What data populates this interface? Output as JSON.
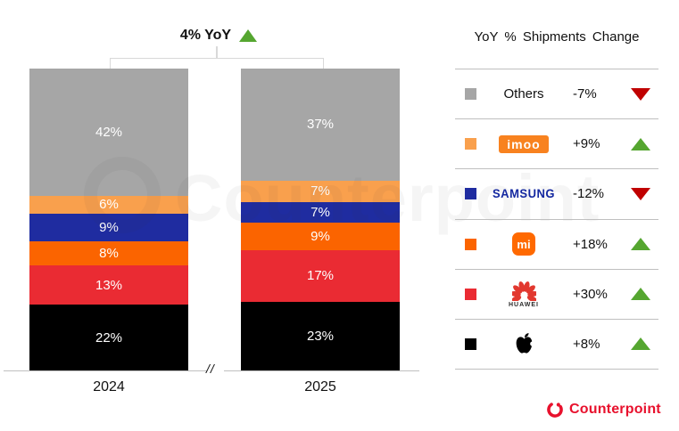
{
  "chart_data": {
    "type": "bar",
    "stacking": "percent",
    "title": "4% YoY",
    "title_direction": "up",
    "categories": [
      "2024",
      "2025"
    ],
    "series": [
      {
        "name": "Others",
        "color": "#A6A6A6",
        "values": [
          42,
          37
        ]
      },
      {
        "name": "imoo",
        "color": "#F9A04D",
        "values": [
          6,
          7
        ]
      },
      {
        "name": "Samsung",
        "color": "#1F2CA0",
        "values": [
          9,
          7
        ]
      },
      {
        "name": "Xiaomi",
        "color": "#FB6400",
        "values": [
          8,
          9
        ]
      },
      {
        "name": "Huawei",
        "color": "#EA2B33",
        "values": [
          13,
          17
        ]
      },
      {
        "name": "Apple",
        "color": "#000000",
        "values": [
          22,
          23
        ]
      }
    ],
    "value_label_suffix": "%",
    "axis_break": "//",
    "legend_position": "right",
    "grid": false
  },
  "legend": {
    "title": "YoY % Shipments Change",
    "rows": [
      {
        "brand": "Others",
        "change": "-7%",
        "direction": "down",
        "color": "#A6A6A6",
        "logo": {
          "type": "text",
          "text": "Others"
        }
      },
      {
        "brand": "imoo",
        "change": "+9%",
        "direction": "up",
        "color": "#F9A04D",
        "logo": {
          "type": "imoo",
          "text": "imoo"
        }
      },
      {
        "brand": "Samsung",
        "change": "-12%",
        "direction": "down",
        "color": "#1F2CA0",
        "logo": {
          "type": "samsung",
          "text": "SAMSUNG"
        }
      },
      {
        "brand": "Xiaomi",
        "change": "+18%",
        "direction": "up",
        "color": "#FB6400",
        "logo": {
          "type": "mi",
          "text": "mi"
        }
      },
      {
        "brand": "Huawei",
        "change": "+30%",
        "direction": "up",
        "color": "#EA2B33",
        "logo": {
          "type": "huawei",
          "text": "HUAWEI"
        }
      },
      {
        "brand": "Apple",
        "change": "+8%",
        "direction": "up",
        "color": "#000000",
        "logo": {
          "type": "apple",
          "text": ""
        }
      }
    ]
  },
  "watermark": "Counterpoint",
  "footer": {
    "brand": "Counterpoint"
  },
  "colors": {
    "up": "#55A630",
    "down": "#C00000",
    "accent_red": "#E8112D",
    "separator": "#BFBFBF"
  }
}
